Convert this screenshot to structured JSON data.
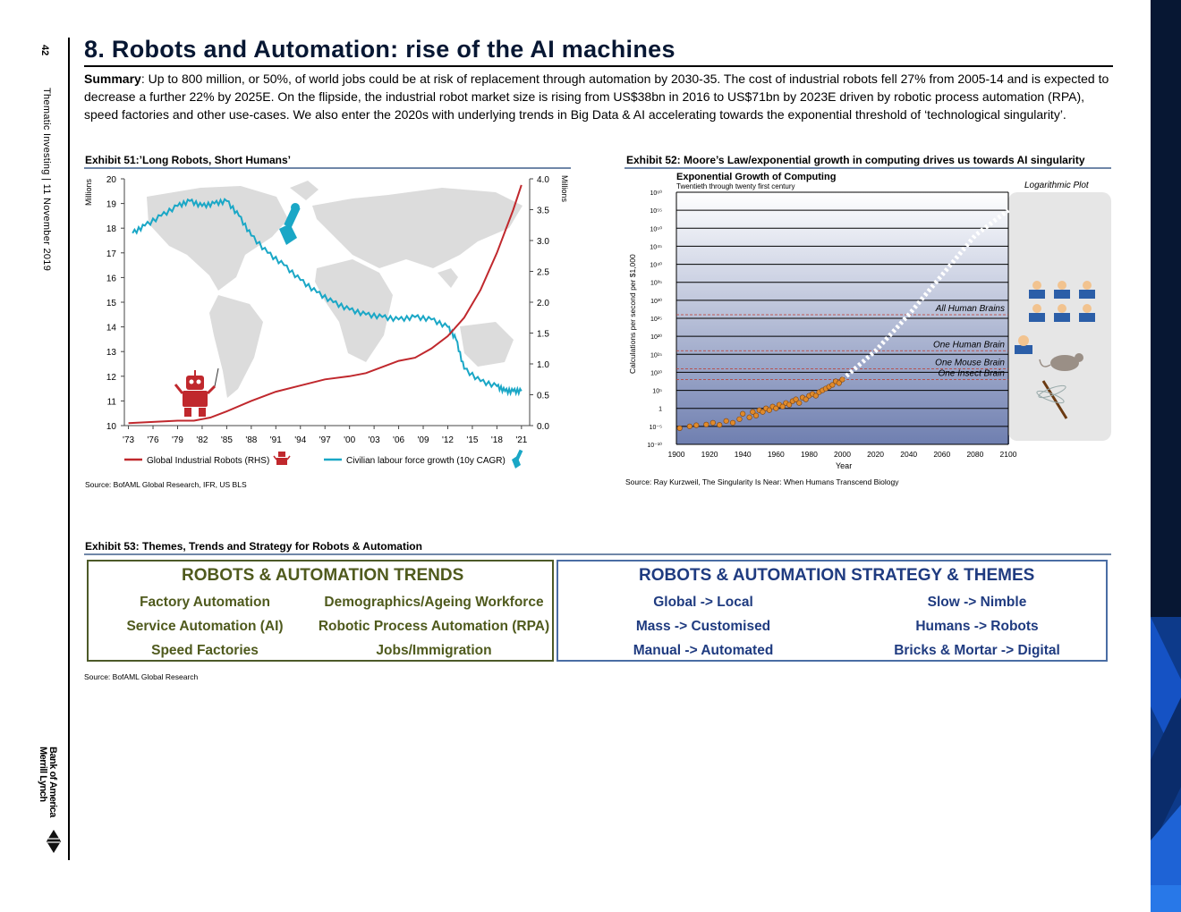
{
  "page": {
    "number": "42",
    "side_text": "Thematic Investing | 11 November 2019",
    "logo_line1": "Bank of America",
    "logo_line2": "Merrill Lynch"
  },
  "header": {
    "title": "8. Robots and Automation: rise of the AI machines",
    "summary_label": "Summary",
    "summary_text": ": Up to 800 million, or 50%, of world jobs could be at risk of replacement through automation by 2030-35. The cost of industrial robots fell 27% from 2005-14 and is expected to decrease a further 22% by 2025E. On the flipside, the industrial robot market size is rising from US$38bn in 2016 to US$71bn by 2023E driven by robotic process automation (RPA), speed factories and other use-cases. We also enter the 2020s with underlying trends in Big Data & AI accelerating towards the exponential threshold of ‘technological singularity’."
  },
  "exhibit51": {
    "title": "Exhibit 51:’Long Robots, Short Humans’",
    "source": "Source: BofAML Global Research, IFR, US BLS"
  },
  "exhibit52": {
    "title": "Exhibit 52: Moore’s Law/exponential growth in computing drives us towards AI singularity",
    "source": "Source: Ray Kurzweil, The Singularity Is Near: When Humans Transcend Biology"
  },
  "exhibit53": {
    "title": "Exhibit 53: Themes, Trends and Strategy for Robots & Automation",
    "source": "Source: BofAML Global Research",
    "trends_header": "ROBOTS & AUTOMATION TRENDS",
    "trends": [
      [
        "Factory Automation",
        "Demographics/Ageing Workforce"
      ],
      [
        "Service Automation (AI)",
        "Robotic Process Automation (RPA)"
      ],
      [
        "Speed Factories",
        "Jobs/Immigration"
      ]
    ],
    "strategy_header": "ROBOTS & AUTOMATION STRATEGY & THEMES",
    "strategy": [
      [
        "Global -> Local",
        "Slow -> Nimble"
      ],
      [
        "Mass -> Customised",
        "Humans -> Robots"
      ],
      [
        "Manual -> Automated",
        "Bricks & Mortar -> Digital"
      ]
    ]
  },
  "colors": {
    "robots_line": "#c0282d",
    "labour_line": "#1aa7c6",
    "navy": "#071733",
    "olive": "#4f5a1d",
    "strategy_blue": "#1f3b80"
  },
  "chart_data": [
    {
      "type": "line",
      "title": "",
      "ylabel_left": "Millions",
      "ylabel_right": "Millions",
      "x_ticks": [
        "'73",
        "'76",
        "'79",
        "'82",
        "'85",
        "'88",
        "'91",
        "'94",
        "'97",
        "'00",
        "'03",
        "'06",
        "'09",
        "'12",
        "'15",
        "'18",
        "'21"
      ],
      "y_left_ticks": [
        "10",
        "11",
        "12",
        "13",
        "14",
        "15",
        "16",
        "17",
        "18",
        "19",
        "20"
      ],
      "y_right_ticks": [
        "0.0",
        "0.5",
        "1.0",
        "1.5",
        "2.0",
        "2.5",
        "3.0",
        "3.5",
        "4.0"
      ],
      "ylim_left": [
        10,
        20
      ],
      "ylim_right": [
        0,
        4
      ],
      "xlim": [
        1972.5,
        2022
      ],
      "series": [
        {
          "name": "Global Industrial Robots (RHS)",
          "axis": "right",
          "x": [
            1973,
            1976,
            1979,
            1981,
            1983,
            1985,
            1988,
            1991,
            1994,
            1997,
            2000,
            2002,
            2004,
            2006,
            2008,
            2010,
            2012,
            2014,
            2016,
            2018,
            2020,
            2021
          ],
          "y": [
            0.04,
            0.06,
            0.08,
            0.08,
            0.13,
            0.23,
            0.4,
            0.55,
            0.65,
            0.75,
            0.8,
            0.85,
            0.95,
            1.05,
            1.1,
            1.25,
            1.45,
            1.75,
            2.2,
            2.8,
            3.5,
            3.9
          ]
        },
        {
          "name": "Civilian labour force growth (10y CAGR)",
          "axis": "left",
          "x": [
            1973.5,
            1975,
            1977,
            1979,
            1980.5,
            1982,
            1983.5,
            1985,
            1986.5,
            1988,
            1990,
            1992,
            1994,
            1996,
            1998,
            2000,
            2002,
            2004,
            2006,
            2008,
            2010,
            2012,
            2013,
            2014,
            2016,
            2018,
            2019,
            2020,
            2021
          ],
          "y": [
            17.8,
            18.1,
            18.5,
            18.9,
            19.1,
            18.9,
            19.0,
            19.1,
            18.5,
            17.7,
            17.0,
            16.5,
            15.9,
            15.4,
            15.0,
            14.7,
            14.5,
            14.4,
            14.3,
            14.4,
            14.3,
            14.0,
            13.5,
            12.3,
            11.8,
            11.6,
            11.4,
            11.4,
            11.4
          ]
        }
      ]
    },
    {
      "type": "scatter",
      "title": "Exponential Growth of Computing",
      "subtitle": "Twentieth through twenty first century",
      "plot_label": "Logarithmic Plot",
      "xlabel": "Year",
      "ylabel": "Calculations per second per $1,000",
      "x_ticks": [
        "1900",
        "1920",
        "1940",
        "1960",
        "1980",
        "2000",
        "2020",
        "2040",
        "2060",
        "2080",
        "2100"
      ],
      "y_ticks": [
        "10⁶⁰",
        "10⁵⁵",
        "10⁵⁰",
        "10⁴⁵",
        "10⁴⁰",
        "10³⁵",
        "10³⁰",
        "10²⁵",
        "10²⁰",
        "10¹⁵",
        "10¹⁰",
        "10⁵",
        "1",
        "10⁻⁵",
        "10⁻¹⁰"
      ],
      "xlim": [
        1900,
        2100
      ],
      "ylim_log10": [
        -10,
        60
      ],
      "log_scale": true,
      "reference_lines": [
        {
          "label": "All Human Brains",
          "log10_y": 26
        },
        {
          "label": "One Human Brain",
          "log10_y": 16
        },
        {
          "label": "One Mouse Brain",
          "log10_y": 11
        },
        {
          "label": "One Insect Brain",
          "log10_y": 8
        }
      ],
      "observed_points": {
        "x": [
          1902,
          1908,
          1912,
          1918,
          1922,
          1926,
          1930,
          1934,
          1938,
          1940,
          1944,
          1946,
          1948,
          1950,
          1952,
          1954,
          1956,
          1958,
          1960,
          1962,
          1964,
          1966,
          1968,
          1970,
          1972,
          1974,
          1976,
          1978,
          1980,
          1982,
          1984,
          1986,
          1988,
          1990,
          1992,
          1994,
          1996,
          1998,
          2000
        ],
        "log10_y": [
          -5.5,
          -5,
          -4.7,
          -4.5,
          -4,
          -4.6,
          -3.5,
          -4,
          -3,
          -1.5,
          -2.5,
          -1,
          -2,
          -0.5,
          -1,
          0,
          -0.5,
          0.5,
          0,
          1,
          0.5,
          1.5,
          1,
          2,
          2.5,
          1.5,
          3,
          2.5,
          3.5,
          4,
          3.5,
          4.5,
          5,
          5.5,
          6,
          6.5,
          7.5,
          7,
          8
        ]
      },
      "projection": {
        "x": [
          2000,
          2020,
          2040,
          2060,
          2080,
          2100
        ],
        "log10_y": [
          8,
          16,
          26,
          37,
          48,
          55
        ]
      }
    }
  ]
}
